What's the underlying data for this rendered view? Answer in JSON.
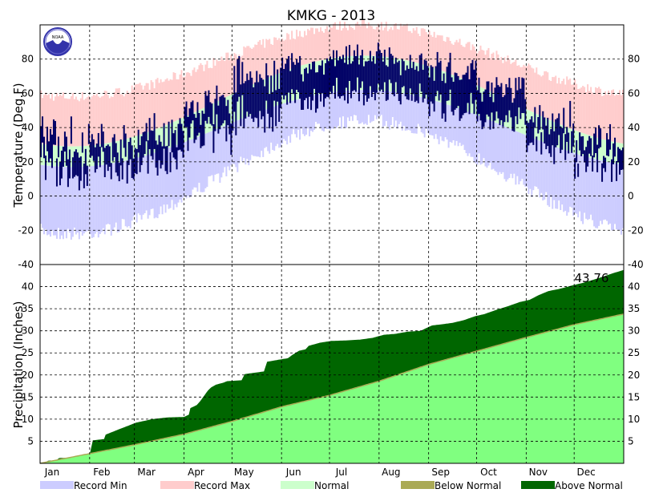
{
  "chart_data": [
    {
      "type": "temperature-range",
      "title": "KMKG - 2013",
      "ylabel": "Temperature (Deg.F)",
      "ylim": [
        -40,
        100
      ],
      "yticks": [
        -40,
        -20,
        0,
        20,
        40,
        60,
        80
      ],
      "grid": true,
      "months": [
        "Jan",
        "Feb",
        "Mar",
        "Apr",
        "May",
        "Jun",
        "Jul",
        "Aug",
        "Sep",
        "Oct",
        "Nov",
        "Dec"
      ],
      "days_in_year": 365,
      "month_start_days": [
        1,
        32,
        60,
        91,
        121,
        152,
        182,
        213,
        244,
        274,
        305,
        335
      ],
      "normal": {
        "low": {
          "min": 17,
          "max": 62,
          "coldest_day": 20,
          "warmest_day": 202
        },
        "high": {
          "min": 29,
          "max": 82,
          "coldest_day": 20,
          "warmest_day": 202
        }
      },
      "record": {
        "low": {
          "min": -18,
          "max": 48
        },
        "high": {
          "min": 55,
          "max": 97
        }
      },
      "observed_monthly": [
        {
          "month": "Jan",
          "avg_high": 32,
          "avg_low": 18,
          "spread": 13
        },
        {
          "month": "Feb",
          "avg_high": 31,
          "avg_low": 17,
          "spread": 11
        },
        {
          "month": "Mar",
          "avg_high": 37,
          "avg_low": 21,
          "spread": 10
        },
        {
          "month": "Apr",
          "avg_high": 52,
          "avg_low": 36,
          "spread": 11
        },
        {
          "month": "May",
          "avg_high": 70,
          "avg_low": 47,
          "spread": 10
        },
        {
          "month": "Jun",
          "avg_high": 76,
          "avg_low": 55,
          "spread": 7
        },
        {
          "month": "Jul",
          "avg_high": 82,
          "avg_low": 61,
          "spread": 7
        },
        {
          "month": "Aug",
          "avg_high": 79,
          "avg_low": 60,
          "spread": 6
        },
        {
          "month": "Sep",
          "avg_high": 74,
          "avg_low": 52,
          "spread": 8
        },
        {
          "month": "Oct",
          "avg_high": 62,
          "avg_low": 43,
          "spread": 9
        },
        {
          "month": "Nov",
          "avg_high": 44,
          "avg_low": 30,
          "spread": 9
        },
        {
          "month": "Dec",
          "avg_high": 31,
          "avg_low": 19,
          "spread": 11
        }
      ]
    },
    {
      "type": "area",
      "ylabel": "Precipitation (Inches)",
      "ylim": [
        0,
        45
      ],
      "yticks": [
        5,
        10,
        15,
        20,
        25,
        30,
        35,
        40
      ],
      "grid": true,
      "months": [
        "Jan",
        "Feb",
        "Mar",
        "Apr",
        "May",
        "Jun",
        "Jul",
        "Aug",
        "Sep",
        "Oct",
        "Nov",
        "Dec"
      ],
      "annotation": "43.76",
      "normal_cumulative": {
        "day": [
          0,
          31,
          59,
          90,
          120,
          151,
          181,
          212,
          243,
          273,
          304,
          334,
          365
        ],
        "value": [
          0,
          2.2,
          4.2,
          6.6,
          9.5,
          12.8,
          15.4,
          18.6,
          22.4,
          25.4,
          28.5,
          31.4,
          33.8
        ]
      },
      "observed_cumulative": {
        "day": [
          0,
          4,
          5,
          10,
          12,
          20,
          21,
          30,
          31,
          33,
          40,
          41,
          50,
          60,
          70,
          80,
          90,
          93,
          94,
          98,
          100,
          105,
          107,
          110,
          112,
          115,
          117,
          126,
          128,
          140,
          142,
          150,
          155,
          158,
          162,
          166,
          168,
          175,
          182,
          190,
          200,
          208,
          215,
          222,
          230,
          238,
          245,
          252,
          258,
          265,
          272,
          278,
          285,
          292,
          300,
          306,
          312,
          318,
          325,
          332,
          340,
          350,
          358,
          365
        ],
        "value": [
          0,
          0.3,
          0.6,
          0.7,
          1.2,
          1.3,
          1.5,
          1.6,
          2.0,
          5.2,
          5.5,
          6.5,
          7.8,
          9.2,
          10.0,
          10.4,
          10.5,
          11.0,
          12.5,
          13.2,
          14.0,
          16.5,
          17.2,
          17.8,
          18.0,
          18.3,
          18.6,
          18.8,
          20.2,
          20.8,
          23.0,
          23.5,
          23.8,
          24.6,
          25.5,
          25.8,
          26.6,
          27.3,
          27.7,
          27.8,
          28.0,
          28.4,
          29.1,
          29.3,
          29.8,
          30.0,
          31.2,
          31.5,
          31.8,
          32.4,
          33.3,
          33.8,
          34.7,
          35.5,
          36.5,
          37.0,
          38.1,
          39.0,
          39.5,
          40.2,
          40.9,
          42.0,
          43.0,
          43.76
        ]
      }
    }
  ],
  "legend": [
    {
      "label": "Record Min",
      "color": "#ccccff"
    },
    {
      "label": "Record Max",
      "color": "#ffcccc"
    },
    {
      "label": "Normal",
      "color": "#ccffcc"
    },
    {
      "label": "Below Normal",
      "color": "#aaaa55"
    },
    {
      "label": "Above Normal",
      "color": "#006600"
    }
  ],
  "colors": {
    "record_min": "#ccccff",
    "record_max": "#ffcccc",
    "normal": "#ccffcc",
    "observed": "#000066",
    "precip_normal": "#80ff80",
    "precip_above": "#006600",
    "precip_below": "#aaaa55",
    "noaa_logo": "#3333aa"
  },
  "logo": {
    "text": "NOAA",
    "icon": "noaa-logo-icon"
  }
}
